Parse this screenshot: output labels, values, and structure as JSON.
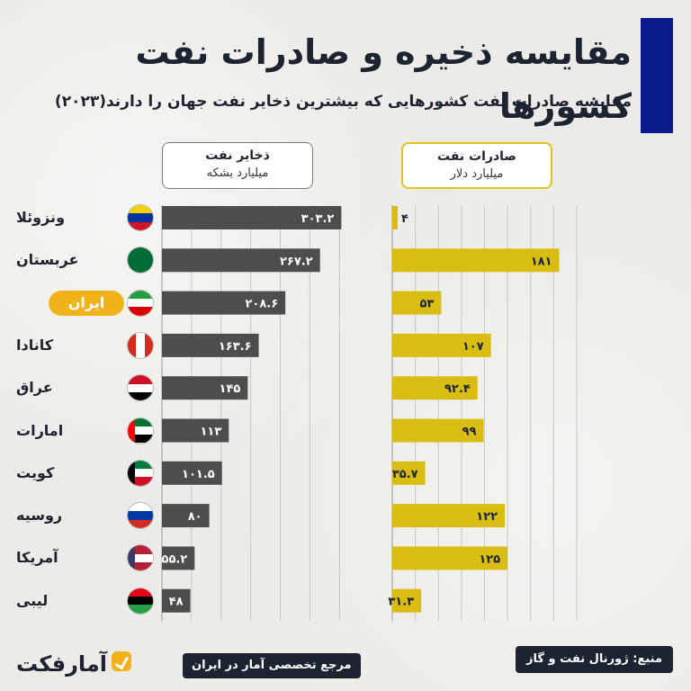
{
  "title": "مقایسه ذخیره و صادرات نفت کشورها",
  "subtitle": "مقایسه صادرات نفت کشورهایی که بیشترین ذخایر نفت جهان را دارند(۲۰۲۳)",
  "logo_text": "آمارفکت",
  "footer_tagline": "مرجع تخصصی آمار در ایران",
  "source": "منبع: ژورنال نفت و گاز",
  "colors": {
    "reserves_bar": "#4d4d4d",
    "exports_bar": "#d9bd12",
    "highlight": "#f2b21a",
    "title_bar": "#0a1a8a"
  },
  "chart_data": [
    {
      "type": "bar",
      "orientation": "horizontal",
      "title": "ذخایر نفت",
      "unit": "میلیارد بشکه",
      "categories": [
        "ونزوئلا",
        "عربستان",
        "ایران",
        "کانادا",
        "عراق",
        "امارات",
        "کویت",
        "روسیه",
        "آمریکا",
        "لیبی"
      ],
      "values": [
        303.2,
        267.2,
        208.6,
        163.6,
        145,
        113,
        101.5,
        80,
        55.2,
        48
      ],
      "value_labels": [
        "۳۰۳.۲",
        "۲۶۷.۲",
        "۲۰۸.۶",
        "۱۶۳.۶",
        "۱۴۵",
        "۱۱۳",
        "۱۰۱.۵",
        "۸۰",
        "۵۵.۲",
        "۴۸"
      ],
      "xlim": [
        0,
        400
      ],
      "grid": true,
      "highlight_category": "ایران"
    },
    {
      "type": "bar",
      "orientation": "horizontal",
      "title": "صادرات نفت",
      "unit": "میلیارد دلار",
      "categories": [
        "ونزوئلا",
        "عربستان",
        "ایران",
        "کانادا",
        "عراق",
        "امارات",
        "کویت",
        "روسیه",
        "آمریکا",
        "لیبی"
      ],
      "values": [
        4,
        181,
        53,
        107,
        92.4,
        99,
        35.7,
        122,
        125,
        31.3
      ],
      "value_labels": [
        "۴",
        "۱۸۱",
        "۵۳",
        "۱۰۷",
        "۹۲.۴",
        "۹۹",
        "۳۵.۷",
        "۱۲۲",
        "۱۲۵",
        "۳۱.۳"
      ],
      "xlim": [
        0,
        200
      ],
      "grid": true
    }
  ],
  "flags": [
    {
      "name": "venezuela-flag",
      "stripes": [
        "#f6d100",
        "#0033a0",
        "#cf142b"
      ]
    },
    {
      "name": "saudi-flag",
      "stripes": [
        "#006c35",
        "#006c35",
        "#006c35"
      ]
    },
    {
      "name": "iran-flag",
      "stripes": [
        "#239f40",
        "#ffffff",
        "#da0000"
      ]
    },
    {
      "name": "canada-flag",
      "stripes": [
        "#d52b1e",
        "#ffffff",
        "#d52b1e"
      ],
      "vertical": true
    },
    {
      "name": "iraq-flag",
      "stripes": [
        "#ce1126",
        "#ffffff",
        "#000000"
      ]
    },
    {
      "name": "uae-flag",
      "stripes": [
        "#00732f",
        "#ffffff",
        "#000000"
      ],
      "hoist": "#ff0000"
    },
    {
      "name": "kuwait-flag",
      "stripes": [
        "#007a3d",
        "#ffffff",
        "#ce1126"
      ],
      "hoist": "#000000"
    },
    {
      "name": "russia-flag",
      "stripes": [
        "#ffffff",
        "#0039a6",
        "#d52b1e"
      ]
    },
    {
      "name": "usa-flag",
      "stripes": [
        "#b22234",
        "#ffffff",
        "#b22234"
      ],
      "hoist": "#3c3b6e"
    },
    {
      "name": "libya-flag",
      "stripes": [
        "#e70013",
        "#000000",
        "#239e46"
      ]
    }
  ]
}
